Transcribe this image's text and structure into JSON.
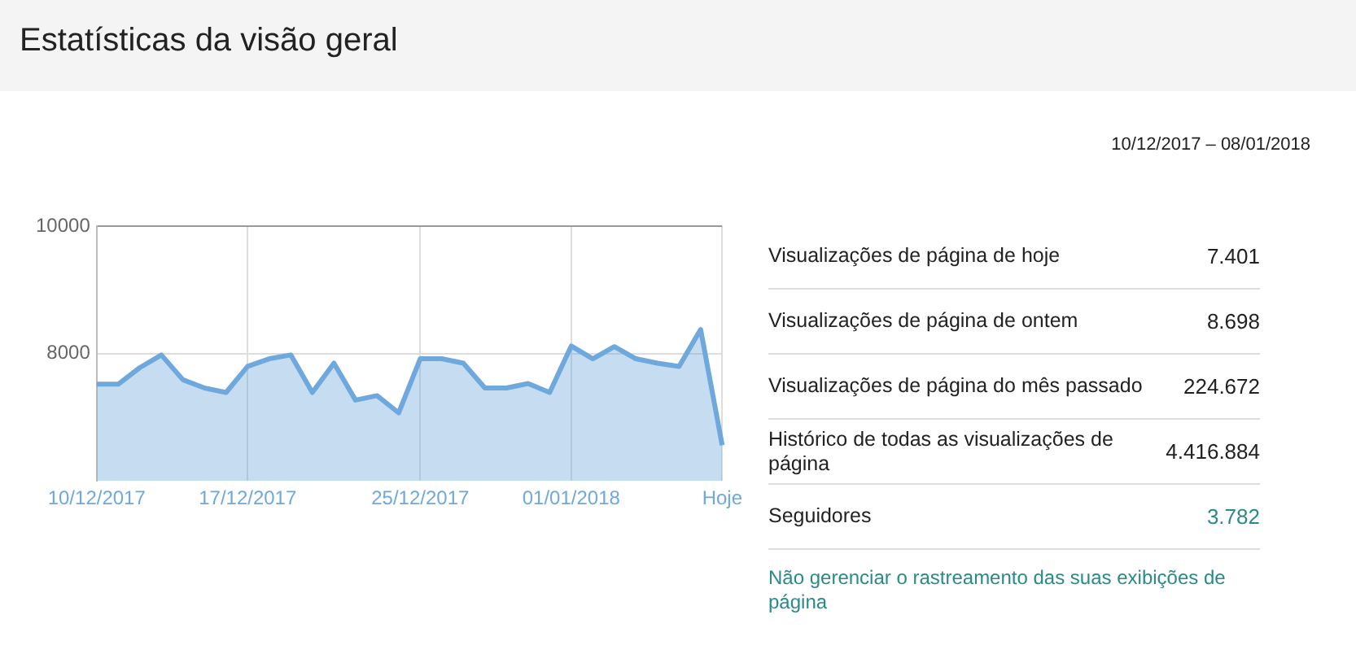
{
  "chart_data": [
    {
      "type": "area",
      "title": "Estatísticas da visão geral",
      "categories": [
        "10/12/2017",
        null,
        null,
        null,
        null,
        null,
        null,
        "17/12/2017",
        null,
        null,
        null,
        null,
        null,
        null,
        null,
        "25/12/2017",
        null,
        null,
        null,
        null,
        null,
        null,
        "01/01/2018",
        null,
        null,
        null,
        null,
        null,
        null,
        "Hoje"
      ],
      "values": [
        7520,
        7520,
        7780,
        7980,
        7590,
        7460,
        7390,
        7800,
        7920,
        7980,
        7390,
        7850,
        7270,
        7340,
        7070,
        7920,
        7920,
        7850,
        7460,
        7460,
        7530,
        7390,
        8120,
        7920,
        8110,
        7920,
        7850,
        7800,
        8380,
        6560
      ],
      "color": "#6fa8dc",
      "ylim": [
        6000,
        10000
      ],
      "yticks": [
        8000,
        10000
      ],
      "grid": true
    },
    {
      "type": "other",
      "title": "10/12/2017 – 08/01/2018",
      "categories": [
        "Visualizações de página de hoje",
        "Visualizações de página de ontem",
        "Visualizações de página do mês passado",
        "Histórico de todas as visualizações de página",
        "Seguidores"
      ],
      "value_labels": [
        "7.401",
        "8.698",
        "224.672",
        "4.416.884",
        "3.782"
      ],
      "colors": [
        "#222222",
        "#222222",
        "#222222",
        "#222222",
        "#2a8a8a"
      ],
      "annotations": [
        "Não gerenciar o rastreamento das suas exibições de página"
      ]
    }
  ]
}
